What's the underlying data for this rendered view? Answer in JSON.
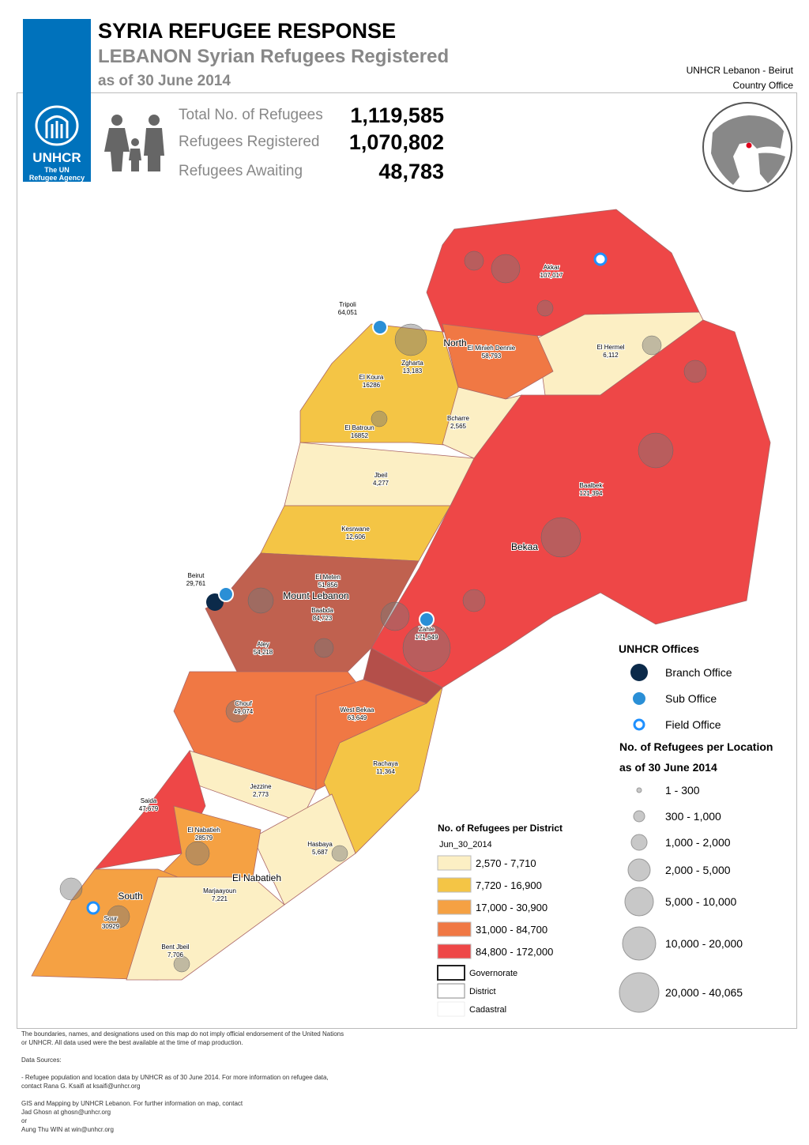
{
  "header": {
    "title": "SYRIA REFUGEE RESPONSE",
    "subtitle": "LEBANON Syrian Refugees Registered",
    "date": "as of 30 June 2014",
    "office": [
      "UNHCR Lebanon - Beirut",
      "Country Office"
    ]
  },
  "logo": {
    "name": "UNHCR",
    "tagline": [
      "The UN",
      "Refugee Agency"
    ]
  },
  "stats": [
    {
      "label": "Total No. of Refugees",
      "value": "1,119,585"
    },
    {
      "label": "Refugees Registered",
      "value": "1,070,802"
    },
    {
      "label": "Refugees Awaiting",
      "value": "48,783"
    }
  ],
  "districts": [
    {
      "name": "Akkar",
      "value": "107,017"
    },
    {
      "name": "Tripoli",
      "value": "64,051"
    },
    {
      "name": "El Minieh Dennie",
      "value": "58,793"
    },
    {
      "name": "Zgharta",
      "value": "13,183"
    },
    {
      "name": "El Koura",
      "value": "16286"
    },
    {
      "name": "El Hermel",
      "value": "6,112"
    },
    {
      "name": "Bcharre",
      "value": "2,565"
    },
    {
      "name": "El Batroun",
      "value": "16852"
    },
    {
      "name": "Jbeil",
      "value": "4,277"
    },
    {
      "name": "Baalbek",
      "value": "121,394"
    },
    {
      "name": "Kesrwane",
      "value": "12,606"
    },
    {
      "name": "Beirut",
      "value": "29,761"
    },
    {
      "name": "El Meten",
      "value": "51,856"
    },
    {
      "name": "Baabda",
      "value": "84,723"
    },
    {
      "name": "Aley",
      "value": "54,218"
    },
    {
      "name": "Zahle",
      "value": "171,649"
    },
    {
      "name": "Chouf",
      "value": "49,074"
    },
    {
      "name": "West Bekaa",
      "value": "63,649"
    },
    {
      "name": "Rachaya",
      "value": "11,364"
    },
    {
      "name": "Jezzine",
      "value": "2,773"
    },
    {
      "name": "Saida",
      "value": "47,679"
    },
    {
      "name": "El Nabatieh",
      "value": "28579"
    },
    {
      "name": "Hasbaya",
      "value": "5,687"
    },
    {
      "name": "Marjaayoun",
      "value": "7,221"
    },
    {
      "name": "Sour",
      "value": "30929"
    },
    {
      "name": "Bent Jbeil",
      "value": "7,706"
    }
  ],
  "governorates": [
    "North",
    "Mount Lebanon",
    "Bekaa",
    "South",
    "El Nabatieh"
  ],
  "offices_legend": {
    "title": "UNHCR Offices",
    "items": [
      "Branch Office",
      "Sub Office",
      "Field Office"
    ]
  },
  "location_legend": {
    "title": "No. of Refugees per Location",
    "subtitle": "as of 30 June 2014",
    "items": [
      "1 - 300",
      "300 - 1,000",
      "1,000 - 2,000",
      "2,000 - 5,000",
      "5,000 - 10,000",
      "10,000 - 20,000",
      "20,000 - 40,065"
    ]
  },
  "district_legend": {
    "title": "No. of Refugees per District",
    "subtitle": "Jun_30_2014",
    "items": [
      {
        "label": "2,570 - 7,710",
        "color": "#fcefc4"
      },
      {
        "label": "7,720 - 16,900",
        "color": "#f4c545"
      },
      {
        "label": "17,000 - 30,900",
        "color": "#f5a143"
      },
      {
        "label": "31,000 - 84,700",
        "color": "#f07844"
      },
      {
        "label": "84,800 - 172,000",
        "color": "#ee4747"
      }
    ],
    "boundaries": [
      "Governorate",
      "District",
      "Cadastral"
    ]
  },
  "footer": {
    "disclaimer": "The boundaries, names, and designations used on this map do not imply official endorsement of the United Nations or UNHCR. All data used were the best available at the time of map production.",
    "sources_title": "Data Sources:",
    "sources": [
      "- Refugee population and location data by UNHCR as of 30 June 2014. For more information on refugee data, contact Rana G. Ksaifi at ksaifi@unhcr.org",
      "GIS and Mapping by UNHCR Lebanon. For further information on map, contact",
      "Jad Ghosn at ghosn@unhcr.org",
      "or",
      "Aung Thu WIN at win@unhcr.org"
    ]
  }
}
